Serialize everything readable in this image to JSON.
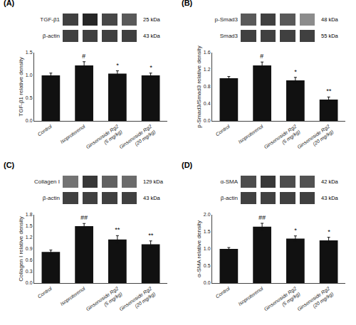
{
  "chart_data": [
    {
      "type": "heatmap",
      "title": "(A)",
      "y": [
        "TGF-β1",
        "β-actin"
      ],
      "cells": [
        [
          0.25,
          0.15,
          0.28,
          0.35
        ],
        [
          0.25,
          0.25,
          0.25,
          0.25
        ]
      ],
      "annotations": [
        "25 kDa",
        "43 kDa"
      ],
      "tick_labels": "y"
    },
    {
      "type": "bar",
      "categories": [
        "Control",
        "Isoproterenol",
        "Ginsenoside Rg2\n(5 mg/kg)",
        "Ginsenoside Rg2\n(20 mg/kg)"
      ],
      "values": [
        1.0,
        1.22,
        1.04,
        1.0
      ],
      "errors": [
        0.05,
        0.08,
        0.06,
        0.05
      ],
      "annotations": [
        null,
        "#",
        "*",
        "*"
      ],
      "ylabel": "TGF-β1 relative density",
      "ylim": [
        0,
        1.5
      ],
      "yticks": [
        {
          "value": 0,
          "label": "0.0"
        },
        0.5,
        {
          "value": 1,
          "label": "1.0"
        },
        1.5
      ],
      "color": "#111111",
      "grid": false
    },
    {
      "type": "heatmap",
      "title": "(B)",
      "y": [
        "p-Smad3",
        "Smad3"
      ],
      "cells": [
        [
          0.35,
          0.25,
          0.35,
          0.55
        ],
        [
          0.25,
          0.25,
          0.25,
          0.25
        ]
      ],
      "annotations": [
        "48 kDa",
        "55 kDa"
      ],
      "tick_labels": "y"
    },
    {
      "type": "bar",
      "categories": [
        "Control",
        "Isoproterenol",
        "Ginsenoside Rg2\n(5 mg/kg)",
        "Ginsenoside Rg2\n(20 mg/kg)"
      ],
      "values": [
        1.0,
        1.3,
        0.95,
        0.5
      ],
      "errors": [
        0.04,
        0.08,
        0.07,
        0.06
      ],
      "annotations": [
        null,
        "#",
        "*",
        "**"
      ],
      "ylabel": "p-Smad3/Smad3 relative density",
      "ylim": [
        0,
        1.6
      ],
      "yticks": [
        {
          "value": 0,
          "label": "0.0"
        },
        0.4,
        0.8,
        1.2,
        1.6
      ],
      "color": "#111111",
      "grid": false
    },
    {
      "type": "heatmap",
      "title": "(C)",
      "y": [
        "Collagen I",
        "β-actin"
      ],
      "cells": [
        [
          0.45,
          0.22,
          0.38,
          0.42
        ],
        [
          0.25,
          0.25,
          0.25,
          0.25
        ]
      ],
      "annotations": [
        "129 kDa",
        "43 kDa"
      ],
      "tick_labels": "y"
    },
    {
      "type": "bar",
      "categories": [
        "Control",
        "Isoproterenol",
        "Ginsenoside Rg2\n(5 mg/kg)",
        "Ginsenoside Rg2\n(20 mg/kg)"
      ],
      "values": [
        0.82,
        1.5,
        1.15,
        1.02
      ],
      "errors": [
        0.05,
        0.07,
        0.1,
        0.09
      ],
      "annotations": [
        null,
        "##",
        "**",
        "**"
      ],
      "ylabel": "Collagen I relative density",
      "ylim": [
        0,
        1.8
      ],
      "yticks": [
        {
          "value": 0,
          "label": "0.0"
        },
        0.3,
        0.6,
        0.9,
        1.2,
        1.5,
        1.8
      ],
      "color": "#111111",
      "grid": false
    },
    {
      "type": "heatmap",
      "title": "(D)",
      "y": [
        "α-SMA",
        "β-actin"
      ],
      "cells": [
        [
          0.3,
          0.22,
          0.3,
          0.32
        ],
        [
          0.25,
          0.25,
          0.25,
          0.25
        ]
      ],
      "annotations": [
        "42 kDa",
        "43 kDa"
      ],
      "tick_labels": "y"
    },
    {
      "type": "bar",
      "categories": [
        "Control",
        "Isoproterenol",
        "Ginsenoside Rg2\n(5 mg/kg)",
        "Ginsenoside Rg2\n(20 mg/kg)"
      ],
      "values": [
        1.0,
        1.65,
        1.3,
        1.25
      ],
      "errors": [
        0.04,
        0.1,
        0.08,
        0.09
      ],
      "annotations": [
        null,
        "##",
        "*",
        "*"
      ],
      "ylabel": "α-SMA relative density",
      "ylim": [
        0,
        2.0
      ],
      "yticks": [
        {
          "value": 0,
          "label": "0.0"
        },
        0.5,
        {
          "value": 1,
          "label": "1.0"
        },
        1.5,
        {
          "value": 2,
          "label": "2.0"
        }
      ],
      "color": "#111111",
      "grid": false
    }
  ]
}
